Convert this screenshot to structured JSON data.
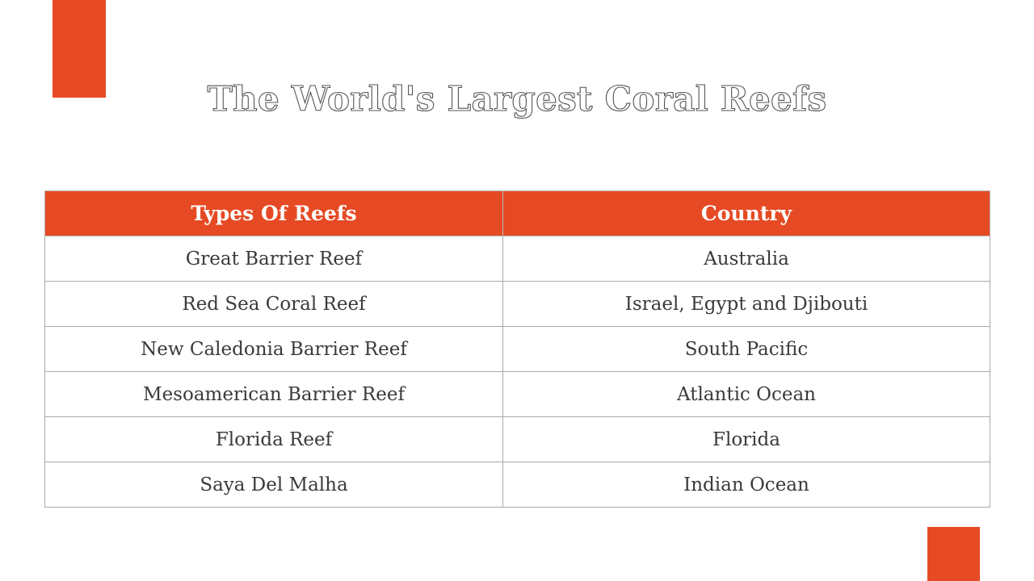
{
  "title": "The World's Largest Coral Reefs",
  "colors": {
    "accent": "#E64A24",
    "text": "#3a3a3a",
    "border": "#a9a9a9"
  },
  "table": {
    "headers": [
      "Types Of Reefs",
      "Country"
    ],
    "rows": [
      [
        "Great Barrier Reef",
        "Australia"
      ],
      [
        "Red Sea Coral Reef",
        "Israel, Egypt and Djibouti"
      ],
      [
        "New Caledonia Barrier Reef",
        "South Pacific"
      ],
      [
        "Mesoamerican Barrier Reef",
        "Atlantic Ocean"
      ],
      [
        "Florida Reef",
        "Florida"
      ],
      [
        "Saya Del Malha",
        "Indian Ocean"
      ]
    ]
  }
}
